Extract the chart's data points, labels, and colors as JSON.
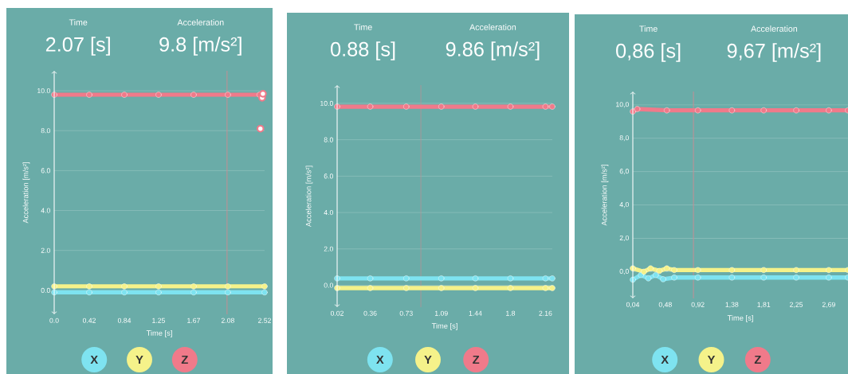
{
  "chart_data": [
    {
      "type": "line",
      "xlabel": "Time [s]",
      "ylabel": "Acceleration [m/s²]",
      "annotations": [
        "Time",
        "2.07 [s]",
        "Acceleration",
        "9.8 [m/s²]"
      ],
      "xlim": [
        0,
        2.52
      ],
      "ylim": [
        -1.2,
        11
      ],
      "xticks": [
        {
          "value": 0,
          "label": "0.0"
        },
        0.42,
        0.84,
        1.25,
        1.67,
        2.08,
        2.52
      ],
      "yticks": [
        {
          "value": 0,
          "label": "0.0"
        },
        {
          "value": 2,
          "label": "2.0"
        },
        {
          "value": 4,
          "label": "4.0"
        },
        {
          "value": 6,
          "label": "6.0"
        },
        {
          "value": 8,
          "label": "8.0"
        },
        {
          "value": 10,
          "label": "10.0"
        }
      ],
      "grid": "y",
      "legend": "bottom",
      "marker": "circle",
      "ref_lines": [
        {
          "axis": "x",
          "value": 2.07,
          "color": "#c98c92"
        }
      ],
      "series": [
        {
          "name": "X",
          "color": "#7ee3f0",
          "x": [
            0,
            0.42,
            0.84,
            1.25,
            1.67,
            2.08,
            2.52
          ],
          "values": [
            -0.1,
            -0.1,
            -0.1,
            -0.1,
            -0.1,
            -0.1,
            -0.1
          ]
        },
        {
          "name": "Y",
          "color": "#f5f28a",
          "x": [
            0,
            0.42,
            0.84,
            1.25,
            1.67,
            2.08,
            2.52
          ],
          "values": [
            0.2,
            0.2,
            0.2,
            0.2,
            0.2,
            0.2,
            0.2
          ]
        },
        {
          "name": "Z",
          "color": "#f07a8a",
          "x": [
            0,
            0.42,
            0.84,
            1.25,
            1.67,
            2.08,
            2.46
          ],
          "values": [
            9.8,
            9.8,
            9.8,
            9.8,
            9.8,
            9.8,
            9.8
          ]
        },
        {
          "type": "scatter",
          "color": "#f07a8a",
          "x": [
            2.47,
            2.49,
            2.5
          ],
          "values": [
            8.1,
            9.65,
            9.85
          ]
        }
      ]
    },
    {
      "type": "line",
      "xlabel": "Time [s]",
      "ylabel": "Acceleration [m/s²]",
      "annotations": [
        "Time",
        "0.88 [s]",
        "Acceleration",
        "9.86 [m/s²]"
      ],
      "xlim": [
        0.02,
        2.23
      ],
      "ylim": [
        -1.2,
        11
      ],
      "xticks": [
        0.02,
        0.36,
        0.73,
        1.09,
        1.44,
        1.8,
        2.16
      ],
      "yticks": [
        {
          "value": 0,
          "label": "0.0"
        },
        {
          "value": 2,
          "label": "2.0"
        },
        {
          "value": 4,
          "label": "4.0"
        },
        {
          "value": 6,
          "label": "6.0"
        },
        {
          "value": 8,
          "label": "8.0"
        },
        {
          "value": 10,
          "label": "10.0"
        }
      ],
      "grid": "y",
      "legend": "bottom",
      "marker": "circle",
      "ref_lines": [
        {
          "axis": "x",
          "value": 0.88,
          "color": "#c98c92"
        }
      ],
      "series": [
        {
          "name": "X",
          "color": "#7ee3f0",
          "x": [
            0.02,
            0.36,
            0.73,
            1.09,
            1.44,
            1.8,
            2.16,
            2.23
          ],
          "values": [
            0.38,
            0.38,
            0.38,
            0.38,
            0.38,
            0.38,
            0.38,
            0.38
          ]
        },
        {
          "name": "Y",
          "color": "#f5f28a",
          "x": [
            0.02,
            0.36,
            0.73,
            1.09,
            1.44,
            1.8,
            2.16,
            2.23
          ],
          "values": [
            -0.15,
            -0.15,
            -0.15,
            -0.15,
            -0.15,
            -0.15,
            -0.15,
            -0.15
          ]
        },
        {
          "name": "Z",
          "color": "#f07a8a",
          "x": [
            0.02,
            0.36,
            0.73,
            1.09,
            1.44,
            1.8,
            2.16,
            2.23
          ],
          "values": [
            9.82,
            9.82,
            9.82,
            9.82,
            9.82,
            9.82,
            9.82,
            9.82
          ]
        }
      ]
    },
    {
      "type": "line",
      "xlabel": "Time [s]",
      "ylabel": "Acceleration [m/s²]",
      "annotations": [
        "Time",
        "0,86 [s]",
        "Acceleration",
        "9,67 [m/s²]"
      ],
      "xlim": [
        0.04,
        2.95
      ],
      "ylim": [
        -1.6,
        10.8
      ],
      "xticks": [
        {
          "value": 0.04,
          "label": "0,04"
        },
        {
          "value": 0.48,
          "label": "0,48"
        },
        {
          "value": 0.92,
          "label": "0,92"
        },
        {
          "value": 1.38,
          "label": "1,38"
        },
        {
          "value": 1.81,
          "label": "1,81"
        },
        {
          "value": 2.25,
          "label": "2,25"
        },
        {
          "value": 2.69,
          "label": "2,69"
        }
      ],
      "yticks": [
        {
          "value": 0,
          "label": "0,0"
        },
        {
          "value": 2,
          "label": "2,0"
        },
        {
          "value": 4,
          "label": "4,0"
        },
        {
          "value": 6,
          "label": "6,0"
        },
        {
          "value": 8,
          "label": "8,0"
        },
        {
          "value": 10,
          "label": "10,0"
        }
      ],
      "grid": "y",
      "legend": "bottom",
      "marker": "circle",
      "ref_lines": [
        {
          "axis": "x",
          "value": 0.86,
          "color": "#c98c92"
        }
      ],
      "series": [
        {
          "name": "X",
          "color": "#7ee3f0",
          "x": [
            0.04,
            0.15,
            0.25,
            0.35,
            0.45,
            0.6,
            0.92,
            1.38,
            1.81,
            2.25,
            2.69,
            2.95
          ],
          "values": [
            -0.48,
            -0.2,
            -0.4,
            -0.2,
            -0.45,
            -0.35,
            -0.35,
            -0.35,
            -0.35,
            -0.35,
            -0.35,
            -0.35
          ]
        },
        {
          "name": "Y",
          "color": "#f5f28a",
          "x": [
            0.04,
            0.19,
            0.28,
            0.4,
            0.5,
            0.6,
            0.92,
            1.38,
            1.81,
            2.25,
            2.69,
            2.95
          ],
          "values": [
            0.2,
            0.0,
            0.2,
            0.05,
            0.2,
            0.1,
            0.1,
            0.1,
            0.1,
            0.1,
            0.1,
            0.1
          ]
        },
        {
          "name": "Z",
          "color": "#f07a8a",
          "x": [
            0.04,
            0.1,
            0.5,
            0.92,
            1.38,
            1.81,
            2.25,
            2.69,
            2.95
          ],
          "values": [
            9.6,
            9.75,
            9.67,
            9.67,
            9.67,
            9.67,
            9.67,
            9.67,
            9.67
          ]
        }
      ]
    }
  ]
}
